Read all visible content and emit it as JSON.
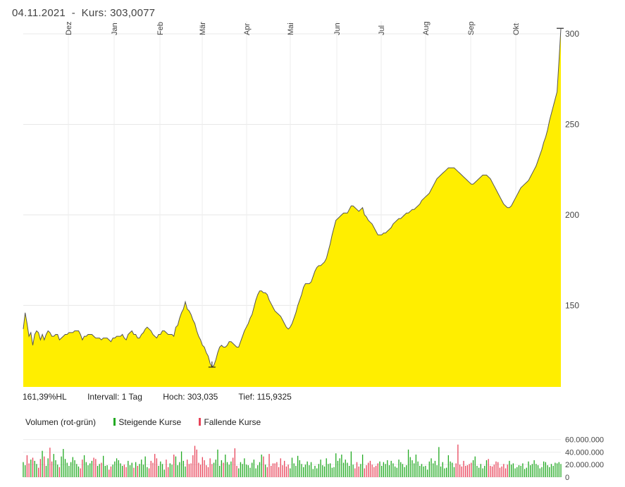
{
  "header": {
    "date": "04.11.2021",
    "separator": "-",
    "kurs_label": "Kurs:",
    "kurs_value": "303,0077"
  },
  "stats": {
    "change": "161,39%HL",
    "interval": "Intervall: 1 Tag",
    "high": "Hoch:  303,035",
    "low": "Tief: 115,9325"
  },
  "volume_legend": {
    "title": "Volumen (rot-grün)",
    "rising": "Steigende Kurse",
    "falling": "Fallende Kurse"
  },
  "colors": {
    "area": "#ffee00",
    "line": "#555555",
    "up": "#22aa22",
    "down": "#e8445a"
  },
  "chart_data": [
    {
      "type": "area",
      "months": [
        "Dez",
        "Jan",
        "Feb",
        "Mär",
        "Apr",
        "Mai",
        "Jun",
        "Jul",
        "Aug",
        "Sep",
        "Okt"
      ],
      "y_ticks": [
        150,
        200,
        250,
        300
      ],
      "ylim": [
        105,
        307
      ],
      "high": 303.035,
      "low": 115.9325,
      "last": 303.0077,
      "values": [
        137,
        146,
        140,
        133,
        135,
        128,
        134,
        136,
        135,
        131,
        134,
        131,
        134,
        136,
        135,
        133,
        133,
        134,
        134,
        131,
        132,
        133,
        134,
        134,
        135,
        135,
        135,
        136,
        136,
        136,
        134,
        131,
        133,
        133,
        134,
        134,
        134,
        133,
        132,
        132,
        132,
        131,
        132,
        132,
        132,
        131,
        130,
        132,
        132,
        133,
        133,
        133,
        134,
        132,
        131,
        134,
        135,
        136,
        134,
        134,
        132,
        132,
        134,
        135,
        137,
        138,
        137,
        136,
        134,
        133,
        132,
        134,
        134,
        136,
        136,
        135,
        134,
        134,
        134,
        133,
        138,
        139,
        143,
        146,
        148,
        152,
        148,
        147,
        145,
        142,
        140,
        136,
        133,
        131,
        128,
        127,
        124,
        122,
        118,
        116,
        117,
        120,
        124,
        127,
        128,
        127,
        127,
        128,
        130,
        130,
        129,
        128,
        127,
        127,
        130,
        133,
        136,
        138,
        140,
        143,
        145,
        149,
        153,
        156,
        158,
        158,
        157,
        157,
        156,
        153,
        151,
        149,
        147,
        146,
        145,
        144,
        142,
        140,
        138,
        137,
        138,
        140,
        143,
        146,
        150,
        153,
        156,
        160,
        162,
        162,
        162,
        163,
        166,
        169,
        171,
        172,
        172,
        173,
        174,
        176,
        180,
        184,
        189,
        193,
        197,
        198,
        199,
        200,
        201,
        201,
        201,
        203,
        205,
        205,
        204,
        203,
        202,
        203,
        204,
        200,
        199,
        197,
        196,
        195,
        193,
        191,
        189,
        189,
        189,
        190,
        190,
        191,
        192,
        193,
        195,
        196,
        197,
        198,
        198,
        199,
        200,
        201,
        201,
        202,
        203,
        203,
        204,
        205,
        206,
        208,
        209,
        210,
        211,
        212,
        214,
        216,
        218,
        220,
        221,
        222,
        223,
        224,
        225,
        226,
        226,
        226,
        226,
        225,
        224,
        223,
        222,
        221,
        220,
        219,
        218,
        217,
        217,
        218,
        219,
        220,
        221,
        222,
        222,
        222,
        221,
        220,
        218,
        216,
        214,
        212,
        210,
        208,
        206,
        205,
        204,
        204,
        205,
        207,
        209,
        211,
        213,
        215,
        216,
        217,
        218,
        219,
        221,
        223,
        225,
        227,
        230,
        233,
        236,
        240,
        243,
        247,
        252,
        256,
        260,
        264,
        268,
        285,
        303
      ]
    },
    {
      "type": "bar",
      "title": "Volumen (rot-grün)",
      "y_ticks": [
        "60.000.000",
        "40.000.000",
        "20.000.000",
        "0"
      ],
      "y_tick_values": [
        60000000,
        40000000,
        20000000,
        0
      ],
      "ylim": [
        0,
        72000000
      ],
      "volumes": [
        24,
        19,
        35,
        22,
        28,
        31,
        26,
        21,
        15,
        29,
        42,
        33,
        18,
        30,
        47,
        25,
        37,
        27,
        20,
        16,
        33,
        45,
        29,
        23,
        18,
        24,
        32,
        27,
        21,
        17,
        14,
        28,
        35,
        24,
        19,
        22,
        26,
        31,
        29,
        18,
        21,
        23,
        34,
        18,
        19,
        12,
        17,
        20,
        25,
        30,
        27,
        22,
        18,
        20,
        16,
        26,
        19,
        23,
        15,
        24,
        18,
        21,
        28,
        20,
        33,
        16,
        14,
        26,
        23,
        37,
        30,
        18,
        25,
        21,
        12,
        28,
        16,
        22,
        20,
        36,
        33,
        19,
        24,
        41,
        26,
        17,
        28,
        21,
        22,
        35,
        50,
        44,
        23,
        20,
        32,
        27,
        19,
        16,
        30,
        21,
        23,
        28,
        44,
        18,
        27,
        23,
        36,
        24,
        20,
        25,
        31,
        46,
        18,
        14,
        24,
        21,
        30,
        20,
        19,
        15,
        23,
        28,
        14,
        19,
        24,
        36,
        33,
        20,
        16,
        37,
        18,
        22,
        22,
        24,
        16,
        30,
        19,
        26,
        17,
        20,
        14,
        31,
        22,
        18,
        34,
        27,
        21,
        16,
        20,
        25,
        19,
        24,
        13,
        18,
        14,
        21,
        28,
        19,
        17,
        30,
        21,
        22,
        15,
        16,
        38,
        26,
        30,
        36,
        23,
        28,
        23,
        18,
        41,
        20,
        14,
        24,
        17,
        21,
        36,
        14,
        19,
        23,
        26,
        20,
        16,
        18,
        22,
        25,
        18,
        24,
        21,
        27,
        19,
        26,
        22,
        17,
        15,
        28,
        24,
        21,
        16,
        19,
        44,
        32,
        27,
        22,
        36,
        25,
        18,
        21,
        17,
        18,
        12,
        25,
        30,
        22,
        26,
        19,
        48,
        17,
        24,
        14,
        15,
        35,
        25,
        23,
        16,
        22,
        52,
        20,
        17,
        26,
        18,
        19,
        21,
        23,
        27,
        33,
        18,
        15,
        21,
        14,
        18,
        27,
        29,
        18,
        17,
        20,
        25,
        24,
        15,
        17,
        21,
        14,
        20,
        26,
        20,
        22,
        14,
        16,
        19,
        18,
        22,
        13,
        15,
        25,
        19,
        21,
        27,
        21,
        19,
        14,
        16,
        25,
        24,
        19,
        16,
        21,
        18,
        23,
        22,
        24,
        21,
        55,
        46,
        33,
        25,
        29,
        23,
        37,
        52,
        40,
        38
      ],
      "volume_scale_million": 1
    }
  ]
}
